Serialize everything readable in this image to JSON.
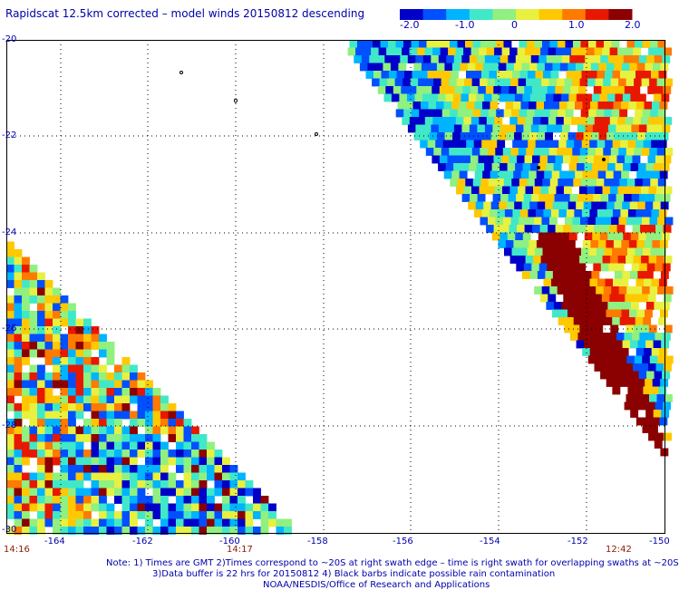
{
  "title": "Rapidscat 12.5km corrected – model winds 20150812 descending",
  "colorbar": {
    "labels": [
      "-2.0",
      "-1.0",
      "0",
      "1.0",
      "2.0"
    ],
    "colors": [
      "#0000c8",
      "#0050ff",
      "#00b4ff",
      "#40e8c8",
      "#90f080",
      "#e8f040",
      "#ffc800",
      "#ff7a00",
      "#e81800",
      "#8b0000"
    ]
  },
  "axes": {
    "lat_labels": [
      "-20",
      "-22",
      "-24",
      "-26",
      "-28",
      "-30"
    ],
    "lon_labels": [
      "-164",
      "-162",
      "-160",
      "-158",
      "-156",
      "-154",
      "-152",
      "-150"
    ],
    "lat_range": [
      -30,
      -20
    ],
    "lon_range": [
      -165.2,
      -150.1
    ],
    "grid": true
  },
  "times": [
    "14:16",
    "14:17",
    "12:42"
  ],
  "notes": [
    "Note: 1) Times are GMT 2)Times correspond to ~20S at right swath edge – time is right swath for overlapping swaths at ~20S",
    "3)Data buffer is 22 hrs for 20150812 4) Black barbs indicate possible rain contamination",
    "NOAA/NESDIS/Office of Research and Applications"
  ]
}
